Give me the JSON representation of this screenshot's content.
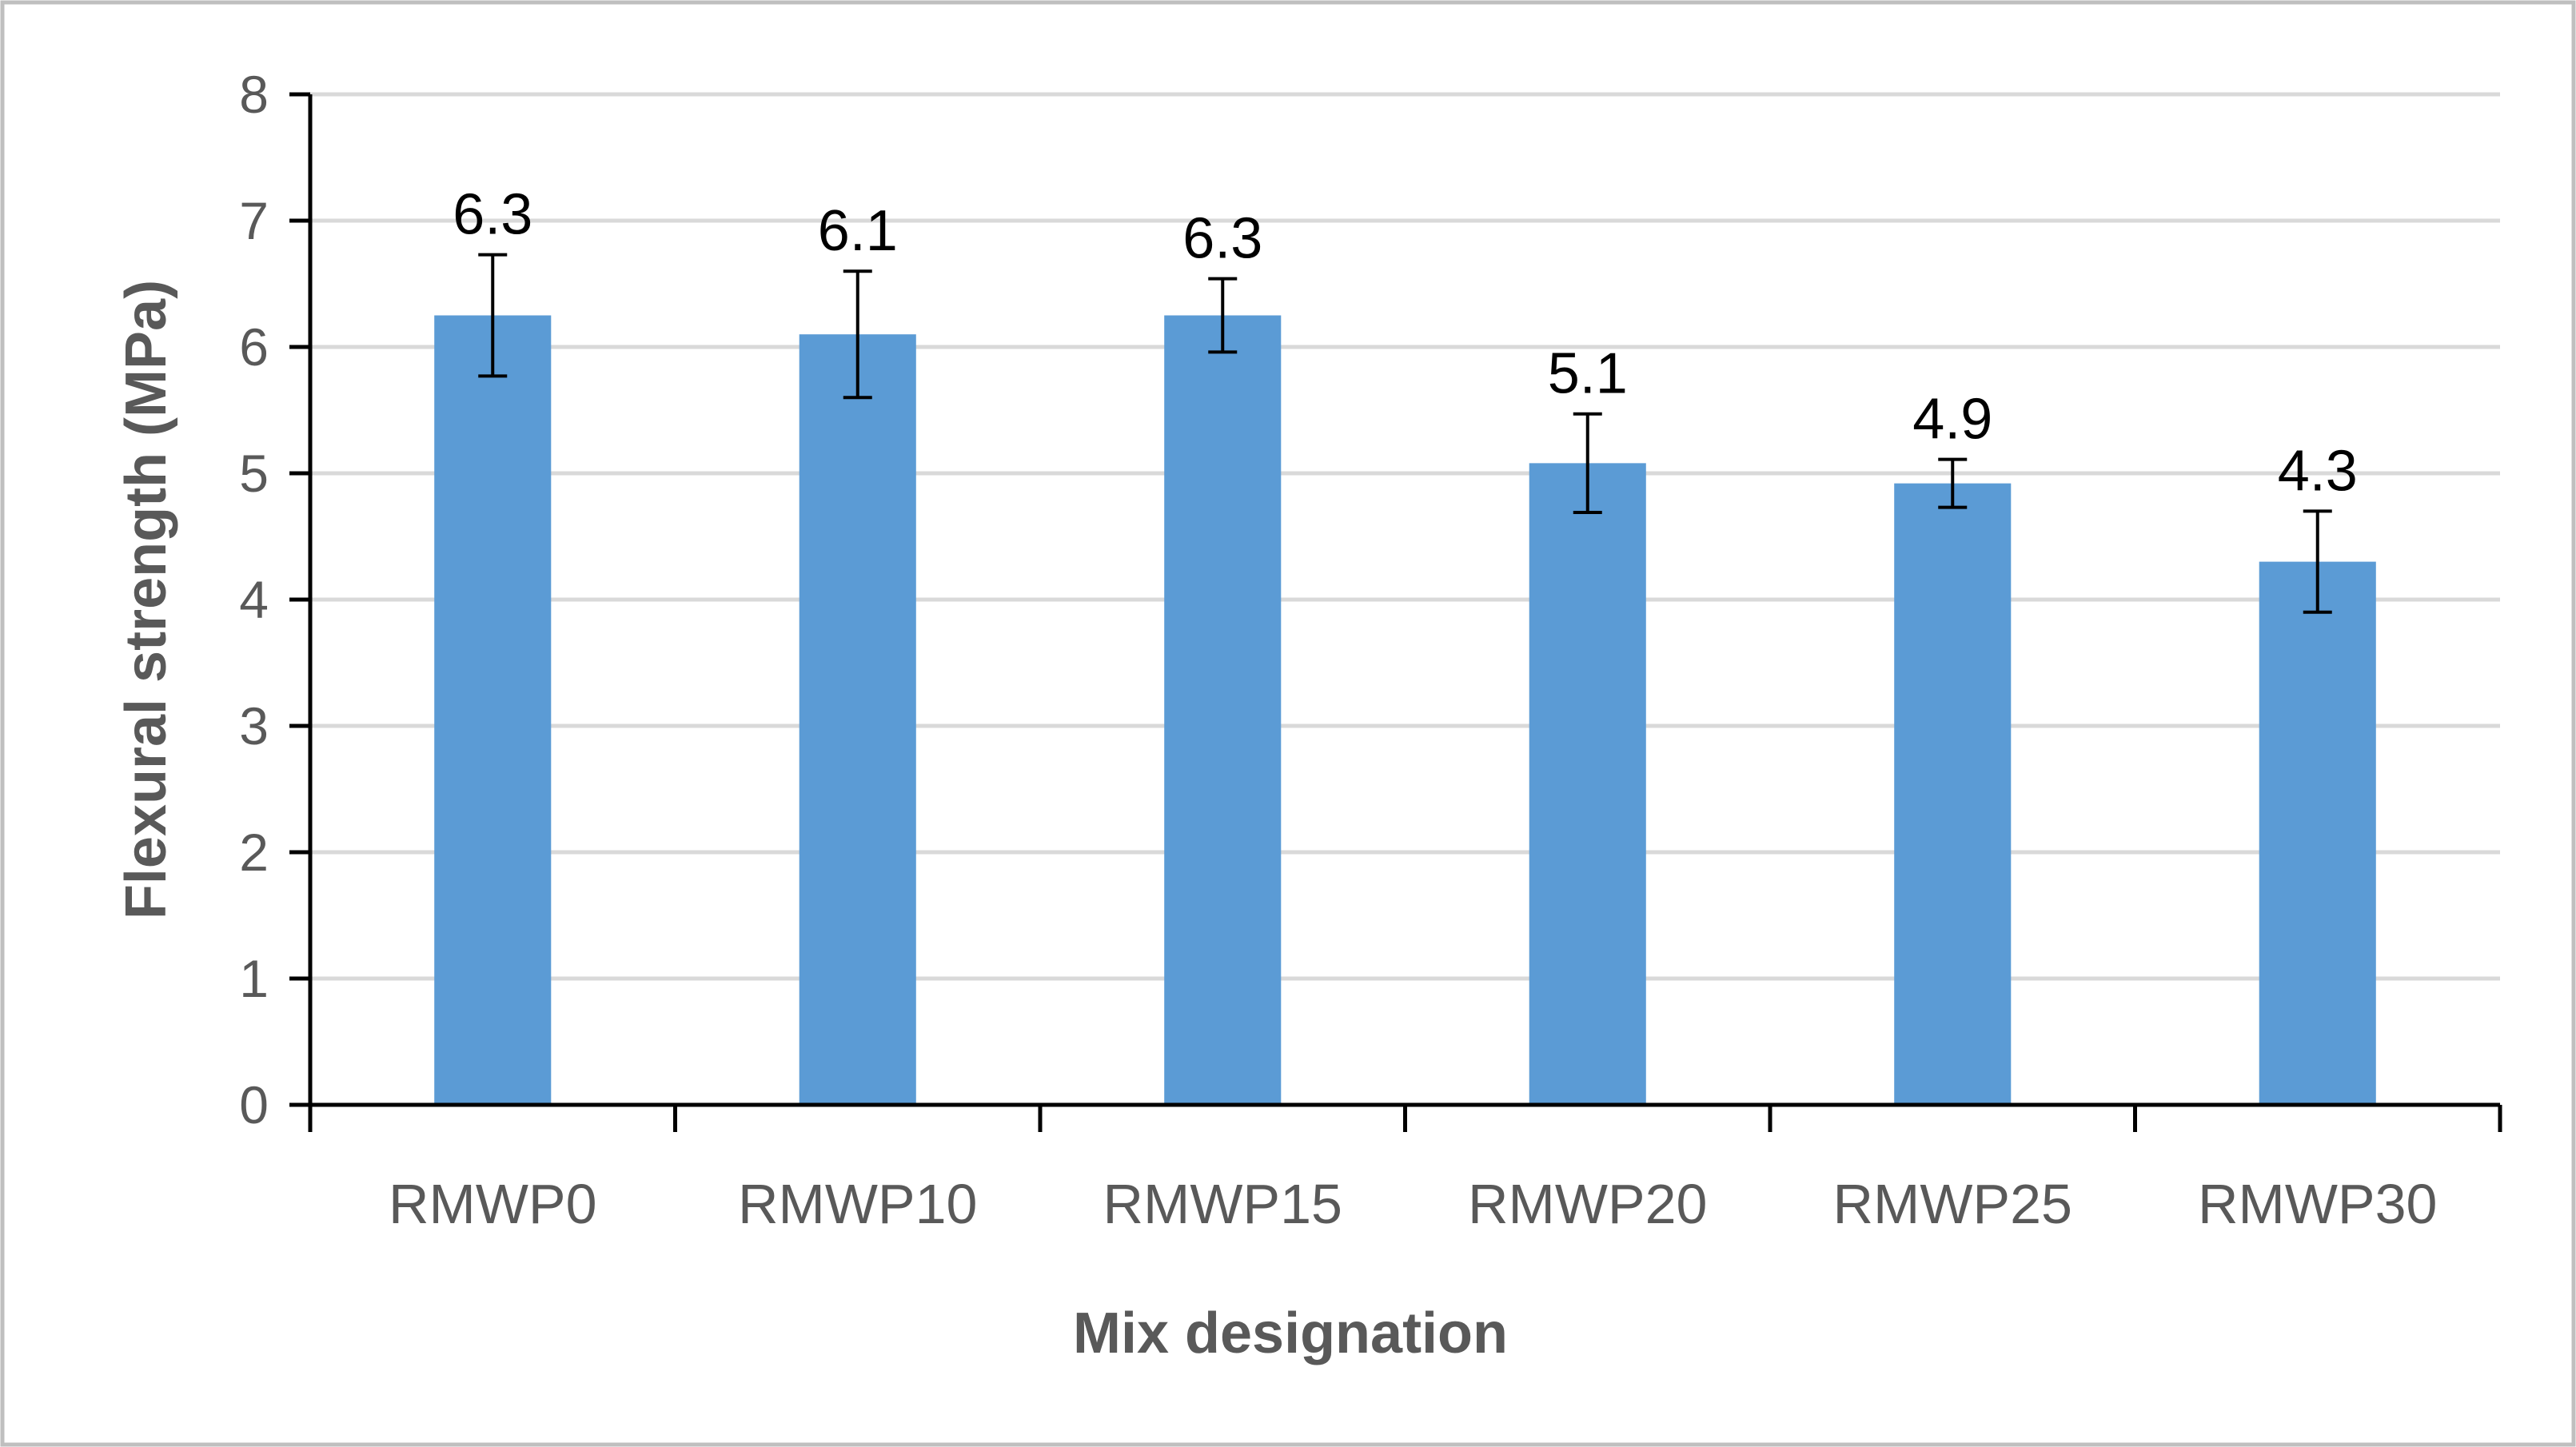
{
  "chart_data": {
    "type": "bar",
    "title": "",
    "xlabel": "Mix designation",
    "ylabel": "Flexural strength (MPa)",
    "categories": [
      "RMWP0",
      "RMWP10",
      "RMWP15",
      "RMWP20",
      "RMWP25",
      "RMWP30"
    ],
    "values": [
      6.25,
      6.1,
      6.25,
      5.08,
      4.92,
      4.3
    ],
    "data_labels": [
      "6.3",
      "6.1",
      "6.3",
      "5.1",
      "4.9",
      "4.3"
    ],
    "error": [
      0.48,
      0.5,
      0.29,
      0.39,
      0.19,
      0.4
    ],
    "ylim": [
      0,
      8
    ],
    "yticks": [
      "0",
      "1",
      "2",
      "3",
      "4",
      "5",
      "6",
      "7",
      "8"
    ],
    "grid": true,
    "legend": "none",
    "colors": {
      "bar": "#5b9bd5",
      "grid": "#d9d9d9",
      "axis": "#000000",
      "error_bar": "#000000",
      "frame": "#bfbfbf"
    }
  }
}
